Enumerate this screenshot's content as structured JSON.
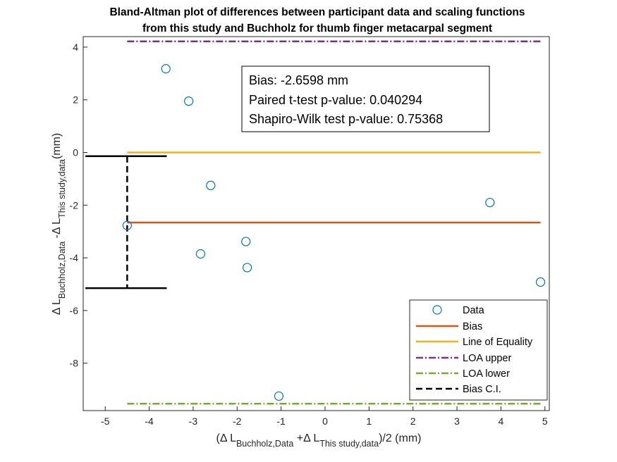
{
  "chart_data": {
    "type": "scatter",
    "title_lines": [
      "Bland-Altman plot of differences between participant data and scaling functions",
      "from this study and Buchholz for thumb finger metacarpal segment"
    ],
    "xlabel": {
      "prefix": "(Δ L",
      "sub1": "Buchholz,Data",
      "mid": " +Δ L",
      "sub2": "This study,data",
      "suffix": ")/2 (mm)"
    },
    "ylabel": {
      "prefix": "Δ L",
      "sub1": "Buchholz,Data",
      "mid": " -Δ L",
      "sub2": "This study,data",
      "suffix": "(mm)"
    },
    "xlim": [
      -5.5,
      5.1
    ],
    "ylim": [
      -9.8,
      4.4
    ],
    "xticks": [
      -5,
      -4,
      -3,
      -2,
      -1,
      0,
      1,
      2,
      3,
      4,
      5
    ],
    "yticks": [
      -8,
      -6,
      -4,
      -2,
      0,
      2,
      4
    ],
    "grid": false,
    "points": [
      {
        "x": -3.62,
        "y": 3.18
      },
      {
        "x": -3.1,
        "y": 1.95
      },
      {
        "x": -2.6,
        "y": -1.25
      },
      {
        "x": -2.83,
        "y": -3.85
      },
      {
        "x": -1.8,
        "y": -3.38
      },
      {
        "x": -1.77,
        "y": -4.37
      },
      {
        "x": -4.5,
        "y": -2.77
      },
      {
        "x": -1.05,
        "y": -9.25
      },
      {
        "x": 3.75,
        "y": -1.9
      },
      {
        "x": 4.9,
        "y": -4.92
      }
    ],
    "bias": {
      "value": -2.6598,
      "x_range": [
        -4.5,
        4.9
      ],
      "color": "#D95319"
    },
    "line_of_equality": {
      "value": 0,
      "x_range": [
        -4.5,
        4.9
      ],
      "color": "#EDB120"
    },
    "loa_upper": {
      "value": 4.22,
      "x_range": [
        -4.5,
        4.9
      ],
      "color": "#7E2F8E"
    },
    "loa_lower": {
      "value": -9.54,
      "x_range": [
        -4.5,
        4.9
      ],
      "color": "#77AC30"
    },
    "bias_ci": {
      "x": -4.5,
      "lower": -5.15,
      "upper": -0.14,
      "cap_range": [
        -5.45,
        -3.6
      ],
      "color": "#000000"
    },
    "marker_color": "#0072BD",
    "annotation": [
      "Bias: -2.6598 mm",
      "Paired t-test p-value: 0.040294",
      "Shapiro-Wilk test p-value: 0.75368"
    ],
    "legend": {
      "position": "bottom-right",
      "entries": [
        "Data",
        "Bias",
        "Line of Equality",
        "LOA upper",
        "LOA lower",
        "Bias C.I."
      ]
    }
  }
}
